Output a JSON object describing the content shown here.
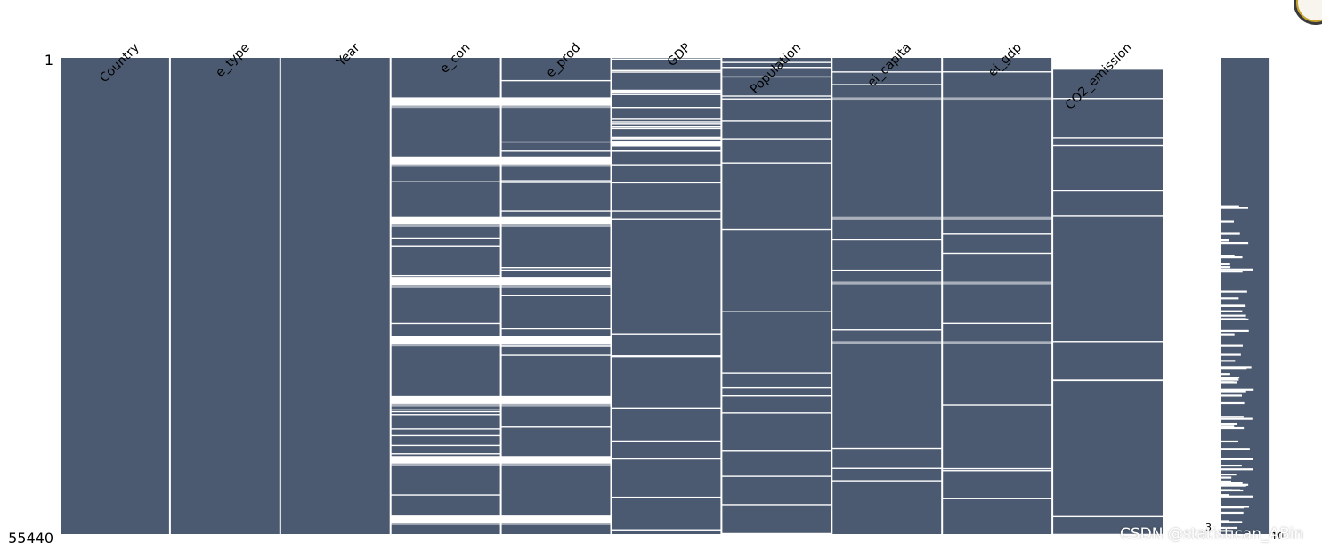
{
  "chart_data": {
    "type": "matrix",
    "title": "",
    "xlabel": "",
    "ylabel": "",
    "row_range": [
      1,
      55440
    ],
    "y_tick_labels": [
      "1",
      "55440"
    ],
    "columns": [
      {
        "name": "Country",
        "completeness": 1.0,
        "missing_bands": []
      },
      {
        "name": "e_type",
        "completeness": 1.0,
        "missing_bands": []
      },
      {
        "name": "Year",
        "completeness": 1.0,
        "missing_bands": []
      },
      {
        "name": "e_con",
        "completeness": 0.95,
        "missing_bands": [
          {
            "start": 0.083,
            "end": 0.1
          },
          {
            "start": 0.1,
            "end": 0.105,
            "light": true
          },
          {
            "start": 0.207,
            "end": 0.224
          },
          {
            "start": 0.224,
            "end": 0.229,
            "light": true
          },
          {
            "start": 0.334,
            "end": 0.35
          },
          {
            "start": 0.35,
            "end": 0.355,
            "light": true
          },
          {
            "start": 0.46,
            "end": 0.477
          },
          {
            "start": 0.477,
            "end": 0.482,
            "light": true
          },
          {
            "start": 0.585,
            "end": 0.6
          },
          {
            "start": 0.6,
            "end": 0.606,
            "light": true
          },
          {
            "start": 0.71,
            "end": 0.727
          },
          {
            "start": 0.727,
            "end": 0.732,
            "light": true
          },
          {
            "start": 0.836,
            "end": 0.852
          },
          {
            "start": 0.852,
            "end": 0.857,
            "light": true
          },
          {
            "start": 0.961,
            "end": 0.976
          },
          {
            "start": 0.976,
            "end": 0.981,
            "light": true
          }
        ]
      },
      {
        "name": "e_prod",
        "completeness": 0.95,
        "missing_bands": [
          {
            "start": 0.083,
            "end": 0.1
          },
          {
            "start": 0.1,
            "end": 0.105,
            "light": true
          },
          {
            "start": 0.207,
            "end": 0.224
          },
          {
            "start": 0.224,
            "end": 0.229,
            "light": true
          },
          {
            "start": 0.334,
            "end": 0.35
          },
          {
            "start": 0.35,
            "end": 0.355,
            "light": true
          },
          {
            "start": 0.46,
            "end": 0.477
          },
          {
            "start": 0.477,
            "end": 0.482,
            "light": true
          },
          {
            "start": 0.585,
            "end": 0.6
          },
          {
            "start": 0.6,
            "end": 0.606,
            "light": true
          },
          {
            "start": 0.71,
            "end": 0.727
          },
          {
            "start": 0.727,
            "end": 0.732,
            "light": true
          },
          {
            "start": 0.836,
            "end": 0.852
          },
          {
            "start": 0.852,
            "end": 0.857,
            "light": true
          },
          {
            "start": 0.961,
            "end": 0.976
          },
          {
            "start": 0.976,
            "end": 0.981,
            "light": true
          }
        ]
      },
      {
        "name": "GDP",
        "completeness": 0.86,
        "missing_bands": []
      },
      {
        "name": "Population",
        "completeness": 0.93,
        "missing_bands": []
      },
      {
        "name": "ei_capita",
        "completeness": 0.97,
        "missing_bands": [
          {
            "start": 0.083,
            "end": 0.088,
            "light": true
          },
          {
            "start": 0.334,
            "end": 0.34,
            "light": true
          },
          {
            "start": 0.47,
            "end": 0.476,
            "light": true
          },
          {
            "start": 0.595,
            "end": 0.601,
            "light": true
          }
        ]
      },
      {
        "name": "ei_gdp",
        "completeness": 0.97,
        "missing_bands": [
          {
            "start": 0.083,
            "end": 0.088,
            "light": true
          },
          {
            "start": 0.334,
            "end": 0.34,
            "light": true
          },
          {
            "start": 0.47,
            "end": 0.476,
            "light": true
          },
          {
            "start": 0.595,
            "end": 0.601,
            "light": true
          }
        ]
      },
      {
        "name": "CO2_emission",
        "completeness": 0.96,
        "missing_bands": [
          {
            "start": 0.0,
            "end": 0.025
          }
        ]
      }
    ],
    "sparkline": {
      "min_complete_label": "3",
      "max_complete_label": "10",
      "min_complete": 3,
      "max_complete": 10
    }
  },
  "colors": {
    "filled": "#4b5a70",
    "missing": "#ffffff",
    "partial": "#a9b0bb",
    "text": "#000000"
  },
  "watermark": "CSDN @statistican_ABin"
}
